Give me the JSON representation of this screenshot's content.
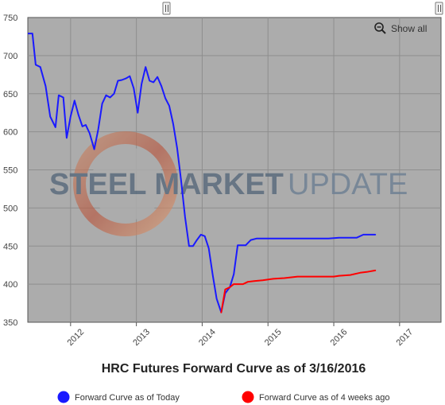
{
  "chart_data": {
    "type": "line",
    "title": "HRC Futures Forward Curve as of 3/16/2016",
    "ylim": [
      350,
      750
    ],
    "yticks": [
      350,
      400,
      450,
      500,
      550,
      600,
      650,
      700,
      750
    ],
    "xlim": [
      2011.35,
      2017.63
    ],
    "xticks": [
      {
        "value": 2012,
        "label": "2012"
      },
      {
        "value": 2013,
        "label": "2013"
      },
      {
        "value": 2014,
        "label": "2014"
      },
      {
        "value": 2015,
        "label": "2015"
      },
      {
        "value": 2016,
        "label": "2016"
      },
      {
        "value": 2017,
        "label": "2017"
      }
    ],
    "grid": true,
    "legend_position": "bottom",
    "series": [
      {
        "name": "Forward Curve as of Today",
        "color": "#1a1aff",
        "points": [
          [
            2011.35,
            729
          ],
          [
            2011.42,
            729
          ],
          [
            2011.47,
            688
          ],
          [
            2011.54,
            685
          ],
          [
            2011.62,
            660
          ],
          [
            2011.69,
            620
          ],
          [
            2011.77,
            606
          ],
          [
            2011.82,
            648
          ],
          [
            2011.89,
            645
          ],
          [
            2011.94,
            592
          ],
          [
            2012.0,
            620
          ],
          [
            2012.06,
            641
          ],
          [
            2012.12,
            622
          ],
          [
            2012.18,
            607
          ],
          [
            2012.23,
            609
          ],
          [
            2012.29,
            598
          ],
          [
            2012.36,
            577
          ],
          [
            2012.42,
            603
          ],
          [
            2012.48,
            637
          ],
          [
            2012.54,
            648
          ],
          [
            2012.6,
            645
          ],
          [
            2012.66,
            650
          ],
          [
            2012.72,
            667
          ],
          [
            2012.78,
            668
          ],
          [
            2012.84,
            670
          ],
          [
            2012.9,
            673
          ],
          [
            2012.96,
            657
          ],
          [
            2013.02,
            625
          ],
          [
            2013.08,
            663
          ],
          [
            2013.14,
            685
          ],
          [
            2013.2,
            667
          ],
          [
            2013.26,
            665
          ],
          [
            2013.32,
            672
          ],
          [
            2013.38,
            660
          ],
          [
            2013.44,
            644
          ],
          [
            2013.5,
            634
          ],
          [
            2013.56,
            610
          ],
          [
            2013.62,
            578
          ],
          [
            2013.68,
            536
          ],
          [
            2013.74,
            488
          ],
          [
            2013.8,
            450
          ],
          [
            2013.86,
            450
          ],
          [
            2013.92,
            458
          ],
          [
            2013.98,
            465
          ],
          [
            2014.04,
            463
          ],
          [
            2014.1,
            447
          ],
          [
            2014.16,
            412
          ],
          [
            2014.22,
            381
          ],
          [
            2014.29,
            363
          ],
          [
            2014.35,
            388
          ],
          [
            2014.42,
            396
          ],
          [
            2014.48,
            413
          ],
          [
            2014.54,
            451
          ],
          [
            2014.66,
            451
          ],
          [
            2014.74,
            458
          ],
          [
            2014.83,
            460
          ],
          [
            2015.0,
            460
          ],
          [
            2015.25,
            460
          ],
          [
            2015.5,
            460
          ],
          [
            2015.75,
            460
          ],
          [
            2015.92,
            460
          ],
          [
            2016.08,
            461
          ],
          [
            2016.35,
            461
          ],
          [
            2016.45,
            465
          ],
          [
            2016.63,
            465
          ]
        ]
      },
      {
        "name": "Forward Curve as of 4 weeks ago",
        "color": "#ff0000",
        "points": [
          [
            2014.29,
            363
          ],
          [
            2014.35,
            393
          ],
          [
            2014.42,
            396
          ],
          [
            2014.48,
            400
          ],
          [
            2014.62,
            400
          ],
          [
            2014.69,
            403
          ],
          [
            2014.79,
            404
          ],
          [
            2014.92,
            405
          ],
          [
            2015.08,
            407
          ],
          [
            2015.25,
            408
          ],
          [
            2015.45,
            410
          ],
          [
            2015.62,
            410
          ],
          [
            2015.82,
            410
          ],
          [
            2016.0,
            410
          ],
          [
            2016.08,
            411
          ],
          [
            2016.25,
            412
          ],
          [
            2016.4,
            415
          ],
          [
            2016.5,
            416
          ],
          [
            2016.63,
            418
          ]
        ]
      }
    ]
  },
  "watermark": {
    "text_bold": "STEEL MARKET",
    "text_light": "UPDATE"
  },
  "controls": {
    "show_all_label": "Show all",
    "zoom_icon": "zoom-out-icon",
    "handle_icon": "range-handle-icon"
  },
  "colors": {
    "plot_background": "#acacac",
    "frame": "#555555",
    "grid": "#8e8e8e",
    "watermark_ring_left": "#c25a42",
    "watermark_ring_right": "#e0a882",
    "watermark_text_dark": "#5b6c7e",
    "watermark_text_light": "#6f8194"
  }
}
